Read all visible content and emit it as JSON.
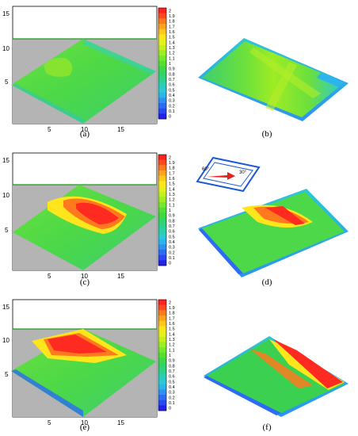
{
  "figure": {
    "captions": [
      "(a)",
      "(b)",
      "(c)",
      "(d)",
      "(e)",
      "(f)"
    ],
    "left_plots": {
      "y_ticks": [
        "15",
        "10",
        "5"
      ],
      "x_ticks": [
        "5",
        "10",
        "15"
      ]
    },
    "colorbar": {
      "labels": [
        "2",
        "1.9",
        "1.8",
        "1.7",
        "1.6",
        "1.5",
        "1.4",
        "1.3",
        "1.2",
        "1.1",
        "1",
        "0.9",
        "0.8",
        "0.7",
        "0.6",
        "0.5",
        "0.4",
        "0.3",
        "0.2",
        "0.1",
        "0"
      ],
      "colors": [
        "#ff2020",
        "#ff4a20",
        "#ff7a1e",
        "#ffa21c",
        "#ffc81a",
        "#ffe61c",
        "#e6f01c",
        "#c4f020",
        "#9eec24",
        "#78e82a",
        "#52e032",
        "#3cd846",
        "#30d468",
        "#2cd28c",
        "#2cceb0",
        "#2cc8d4",
        "#2cb4ee",
        "#2c92f2",
        "#2c6cf4",
        "#2c46f4",
        "#2222e8"
      ]
    },
    "inset": {
      "angle_left": "60°",
      "angle_right": "30°"
    },
    "colors": {
      "gray_region": "#b4b4b4",
      "boundary_line": "#1a9a1a"
    }
  }
}
